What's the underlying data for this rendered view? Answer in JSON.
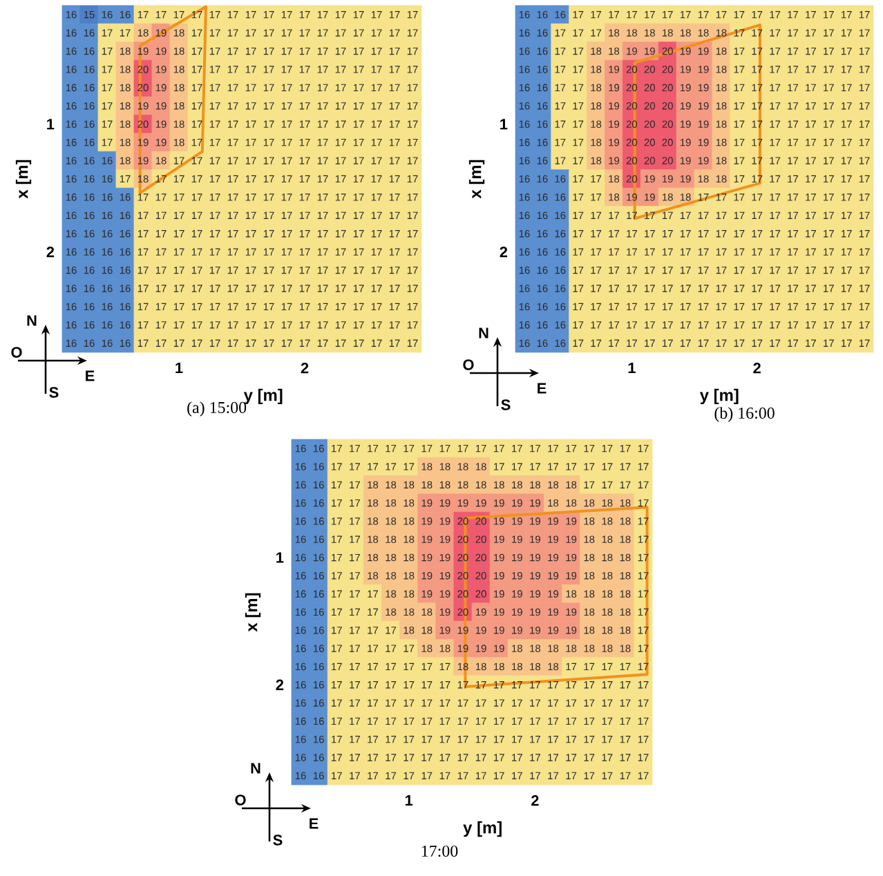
{
  "chart_data": [
    {
      "type": "heatmap",
      "title": "(a) 15:00",
      "xlabel": "y [m]",
      "ylabel": "x [m]",
      "annotations": [
        "N",
        "O",
        "E",
        "S"
      ],
      "data_labels": true,
      "categories": [
        null,
        null,
        null,
        null,
        null,
        null,
        "1",
        null,
        null,
        null,
        null,
        null,
        null,
        "2",
        null,
        null,
        null,
        null,
        null,
        null
      ],
      "y_categories": [
        null,
        null,
        null,
        null,
        null,
        null,
        "1",
        null,
        null,
        null,
        null,
        null,
        null,
        "2",
        null,
        null,
        null,
        null,
        null
      ],
      "cells": [
        [
          16,
          15,
          16,
          16,
          17,
          17,
          17,
          17,
          17,
          17,
          17,
          17,
          17,
          17,
          17,
          17,
          17,
          17,
          17,
          17
        ],
        [
          16,
          16,
          17,
          17,
          18,
          19,
          18,
          17,
          17,
          17,
          17,
          17,
          17,
          17,
          17,
          17,
          17,
          17,
          17,
          17
        ],
        [
          16,
          16,
          17,
          18,
          19,
          19,
          18,
          17,
          17,
          17,
          17,
          17,
          17,
          17,
          17,
          17,
          17,
          17,
          17,
          17
        ],
        [
          16,
          16,
          17,
          18,
          20,
          19,
          18,
          17,
          17,
          17,
          17,
          17,
          17,
          17,
          17,
          17,
          17,
          17,
          17,
          17
        ],
        [
          16,
          16,
          17,
          18,
          20,
          19,
          18,
          17,
          17,
          17,
          17,
          17,
          17,
          17,
          17,
          17,
          17,
          17,
          17,
          17
        ],
        [
          16,
          16,
          17,
          18,
          19,
          19,
          18,
          17,
          17,
          17,
          17,
          17,
          17,
          17,
          17,
          17,
          17,
          17,
          17,
          17
        ],
        [
          16,
          16,
          17,
          18,
          20,
          19,
          18,
          17,
          17,
          17,
          17,
          17,
          17,
          17,
          17,
          17,
          17,
          17,
          17,
          17
        ],
        [
          16,
          16,
          17,
          18,
          19,
          19,
          18,
          17,
          17,
          17,
          17,
          17,
          17,
          17,
          17,
          17,
          17,
          17,
          17,
          17
        ],
        [
          16,
          16,
          16,
          18,
          19,
          18,
          17,
          17,
          17,
          17,
          17,
          17,
          17,
          17,
          17,
          17,
          17,
          17,
          17,
          17
        ],
        [
          16,
          16,
          16,
          17,
          18,
          17,
          17,
          17,
          17,
          17,
          17,
          17,
          17,
          17,
          17,
          17,
          17,
          17,
          17,
          17
        ],
        [
          16,
          16,
          16,
          16,
          17,
          17,
          17,
          17,
          17,
          17,
          17,
          17,
          17,
          17,
          17,
          17,
          17,
          17,
          17,
          17
        ],
        [
          16,
          16,
          16,
          16,
          17,
          17,
          17,
          17,
          17,
          17,
          17,
          17,
          17,
          17,
          17,
          17,
          17,
          17,
          17,
          17
        ],
        [
          16,
          16,
          16,
          16,
          17,
          17,
          17,
          17,
          17,
          17,
          17,
          17,
          17,
          17,
          17,
          17,
          17,
          17,
          17,
          17
        ],
        [
          16,
          16,
          16,
          16,
          17,
          17,
          17,
          17,
          17,
          17,
          17,
          17,
          17,
          17,
          17,
          17,
          17,
          17,
          17,
          17
        ],
        [
          16,
          16,
          16,
          16,
          17,
          17,
          17,
          17,
          17,
          17,
          17,
          17,
          17,
          17,
          17,
          17,
          17,
          17,
          17,
          17
        ],
        [
          16,
          16,
          16,
          16,
          17,
          17,
          17,
          17,
          17,
          17,
          17,
          17,
          17,
          17,
          17,
          17,
          17,
          17,
          17,
          17
        ],
        [
          16,
          16,
          16,
          16,
          17,
          17,
          17,
          17,
          17,
          17,
          17,
          17,
          17,
          17,
          17,
          17,
          17,
          17,
          17,
          17
        ],
        [
          16,
          16,
          16,
          16,
          17,
          17,
          17,
          17,
          17,
          17,
          17,
          17,
          17,
          17,
          17,
          17,
          17,
          17,
          17,
          17
        ],
        [
          16,
          16,
          16,
          16,
          17,
          17,
          17,
          17,
          17,
          17,
          17,
          17,
          17,
          17,
          17,
          17,
          17,
          17,
          17,
          17
        ]
      ]
    },
    {
      "type": "heatmap",
      "title": "(b) 16:00",
      "xlabel": "y [m]",
      "ylabel": "x [m]",
      "annotations": [
        "N",
        "O",
        "E",
        "S"
      ],
      "data_labels": true,
      "categories": [
        null,
        null,
        null,
        null,
        null,
        null,
        "1",
        null,
        null,
        null,
        null,
        null,
        null,
        "2",
        null,
        null,
        null,
        null,
        null,
        null
      ],
      "y_categories": [
        null,
        null,
        null,
        null,
        null,
        null,
        "1",
        null,
        null,
        null,
        null,
        null,
        null,
        "2",
        null,
        null,
        null,
        null,
        null
      ],
      "cells": [
        [
          16,
          16,
          16,
          17,
          17,
          17,
          17,
          17,
          17,
          17,
          17,
          17,
          17,
          17,
          17,
          17,
          17,
          17,
          17,
          17
        ],
        [
          16,
          16,
          17,
          17,
          17,
          18,
          18,
          18,
          18,
          18,
          18,
          18,
          17,
          17,
          17,
          17,
          17,
          17,
          17,
          17
        ],
        [
          16,
          16,
          17,
          17,
          18,
          18,
          19,
          19,
          20,
          19,
          19,
          18,
          17,
          17,
          17,
          17,
          17,
          17,
          17,
          17
        ],
        [
          16,
          16,
          17,
          17,
          18,
          19,
          20,
          20,
          20,
          19,
          19,
          18,
          17,
          17,
          17,
          17,
          17,
          17,
          17,
          17
        ],
        [
          16,
          16,
          17,
          17,
          18,
          19,
          20,
          20,
          20,
          19,
          19,
          18,
          17,
          17,
          17,
          17,
          17,
          17,
          17,
          17
        ],
        [
          16,
          16,
          17,
          17,
          18,
          19,
          20,
          20,
          20,
          19,
          19,
          18,
          17,
          17,
          17,
          17,
          17,
          17,
          17,
          17
        ],
        [
          16,
          16,
          17,
          17,
          18,
          19,
          20,
          20,
          20,
          19,
          19,
          18,
          17,
          17,
          17,
          17,
          17,
          17,
          17,
          17
        ],
        [
          16,
          16,
          17,
          17,
          18,
          19,
          20,
          20,
          20,
          19,
          19,
          18,
          17,
          17,
          17,
          17,
          17,
          17,
          17,
          17
        ],
        [
          16,
          16,
          17,
          17,
          18,
          19,
          20,
          20,
          20,
          19,
          19,
          18,
          17,
          17,
          17,
          17,
          17,
          17,
          17,
          17
        ],
        [
          16,
          16,
          16,
          17,
          17,
          18,
          20,
          19,
          19,
          19,
          18,
          18,
          17,
          17,
          17,
          17,
          17,
          17,
          17,
          17
        ],
        [
          16,
          16,
          16,
          17,
          17,
          18,
          19,
          19,
          18,
          18,
          17,
          17,
          17,
          17,
          17,
          17,
          17,
          17,
          17,
          17
        ],
        [
          16,
          16,
          16,
          17,
          17,
          17,
          17,
          17,
          17,
          17,
          17,
          17,
          17,
          17,
          17,
          17,
          17,
          17,
          17,
          17
        ],
        [
          16,
          16,
          16,
          17,
          17,
          17,
          17,
          17,
          17,
          17,
          17,
          17,
          17,
          17,
          17,
          17,
          17,
          17,
          17,
          17
        ],
        [
          16,
          16,
          16,
          17,
          17,
          17,
          17,
          17,
          17,
          17,
          17,
          17,
          17,
          17,
          17,
          17,
          17,
          17,
          17,
          17
        ],
        [
          16,
          16,
          16,
          17,
          17,
          17,
          17,
          17,
          17,
          17,
          17,
          17,
          17,
          17,
          17,
          17,
          17,
          17,
          17,
          17
        ],
        [
          16,
          16,
          16,
          17,
          17,
          17,
          17,
          17,
          17,
          17,
          17,
          17,
          17,
          17,
          17,
          17,
          17,
          17,
          17,
          17
        ],
        [
          16,
          16,
          16,
          17,
          17,
          17,
          17,
          17,
          17,
          17,
          17,
          17,
          17,
          17,
          17,
          17,
          17,
          17,
          17,
          17
        ],
        [
          16,
          16,
          16,
          17,
          17,
          17,
          17,
          17,
          17,
          17,
          17,
          17,
          17,
          17,
          17,
          17,
          17,
          17,
          17,
          17
        ],
        [
          16,
          16,
          16,
          17,
          17,
          17,
          17,
          17,
          17,
          17,
          17,
          17,
          17,
          17,
          17,
          17,
          17,
          17,
          17,
          17
        ]
      ]
    },
    {
      "type": "heatmap",
      "title": "17:00",
      "xlabel": "y [m]",
      "ylabel": "x [m]",
      "annotations": [
        "N",
        "O",
        "E",
        "S"
      ],
      "data_labels": true,
      "categories": [
        null,
        null,
        null,
        null,
        null,
        null,
        "1",
        null,
        null,
        null,
        null,
        null,
        null,
        "2",
        null,
        null,
        null,
        null,
        null,
        null
      ],
      "y_categories": [
        null,
        null,
        null,
        null,
        null,
        null,
        "1",
        null,
        null,
        null,
        null,
        null,
        null,
        "2",
        null,
        null,
        null,
        null,
        null
      ],
      "cells": [
        [
          16,
          16,
          17,
          17,
          17,
          17,
          17,
          17,
          17,
          17,
          17,
          17,
          17,
          17,
          17,
          17,
          17,
          17,
          17,
          17
        ],
        [
          16,
          16,
          17,
          17,
          17,
          17,
          17,
          18,
          18,
          18,
          18,
          17,
          17,
          17,
          17,
          17,
          17,
          17,
          17,
          17
        ],
        [
          16,
          16,
          17,
          17,
          18,
          18,
          18,
          18,
          18,
          18,
          18,
          18,
          18,
          18,
          18,
          18,
          17,
          17,
          17,
          17
        ],
        [
          16,
          16,
          17,
          17,
          18,
          18,
          18,
          19,
          19,
          19,
          19,
          19,
          19,
          19,
          18,
          18,
          18,
          18,
          18,
          17
        ],
        [
          16,
          16,
          17,
          17,
          18,
          18,
          18,
          19,
          19,
          20,
          20,
          19,
          19,
          19,
          19,
          19,
          18,
          18,
          18,
          17
        ],
        [
          16,
          16,
          17,
          17,
          18,
          18,
          18,
          19,
          19,
          20,
          20,
          19,
          19,
          19,
          19,
          19,
          18,
          18,
          18,
          17
        ],
        [
          16,
          16,
          17,
          17,
          18,
          18,
          18,
          19,
          19,
          20,
          20,
          19,
          19,
          19,
          19,
          19,
          18,
          18,
          18,
          17
        ],
        [
          16,
          16,
          17,
          17,
          18,
          18,
          18,
          19,
          19,
          20,
          20,
          19,
          19,
          19,
          19,
          19,
          18,
          18,
          18,
          17
        ],
        [
          16,
          16,
          17,
          17,
          17,
          18,
          18,
          19,
          19,
          20,
          20,
          19,
          19,
          19,
          19,
          18,
          18,
          18,
          18,
          17
        ],
        [
          16,
          16,
          17,
          17,
          17,
          18,
          18,
          18,
          19,
          20,
          19,
          19,
          19,
          19,
          19,
          19,
          18,
          18,
          18,
          17
        ],
        [
          16,
          16,
          17,
          17,
          17,
          17,
          18,
          18,
          19,
          19,
          19,
          19,
          19,
          19,
          19,
          19,
          18,
          18,
          18,
          17
        ],
        [
          16,
          16,
          17,
          17,
          17,
          17,
          17,
          18,
          18,
          19,
          19,
          19,
          18,
          18,
          18,
          18,
          18,
          18,
          18,
          17
        ],
        [
          16,
          16,
          17,
          17,
          17,
          17,
          17,
          17,
          17,
          18,
          18,
          18,
          18,
          18,
          18,
          17,
          17,
          17,
          17,
          17
        ],
        [
          16,
          16,
          17,
          17,
          17,
          17,
          17,
          17,
          17,
          17,
          17,
          17,
          17,
          17,
          17,
          17,
          17,
          17,
          17,
          17
        ],
        [
          16,
          16,
          17,
          17,
          17,
          17,
          17,
          17,
          17,
          17,
          17,
          17,
          17,
          17,
          17,
          17,
          17,
          17,
          17,
          17
        ],
        [
          16,
          16,
          17,
          17,
          17,
          17,
          17,
          17,
          17,
          17,
          17,
          17,
          17,
          17,
          17,
          17,
          17,
          17,
          17,
          17
        ],
        [
          16,
          16,
          17,
          17,
          17,
          17,
          17,
          17,
          17,
          17,
          17,
          17,
          17,
          17,
          17,
          17,
          17,
          17,
          17,
          17
        ],
        [
          16,
          16,
          17,
          17,
          17,
          17,
          17,
          17,
          17,
          17,
          17,
          17,
          17,
          17,
          17,
          17,
          17,
          17,
          17,
          17
        ],
        [
          16,
          16,
          17,
          17,
          17,
          17,
          17,
          17,
          17,
          17,
          17,
          17,
          17,
          17,
          17,
          17,
          17,
          17,
          17,
          17
        ]
      ]
    }
  ]
}
